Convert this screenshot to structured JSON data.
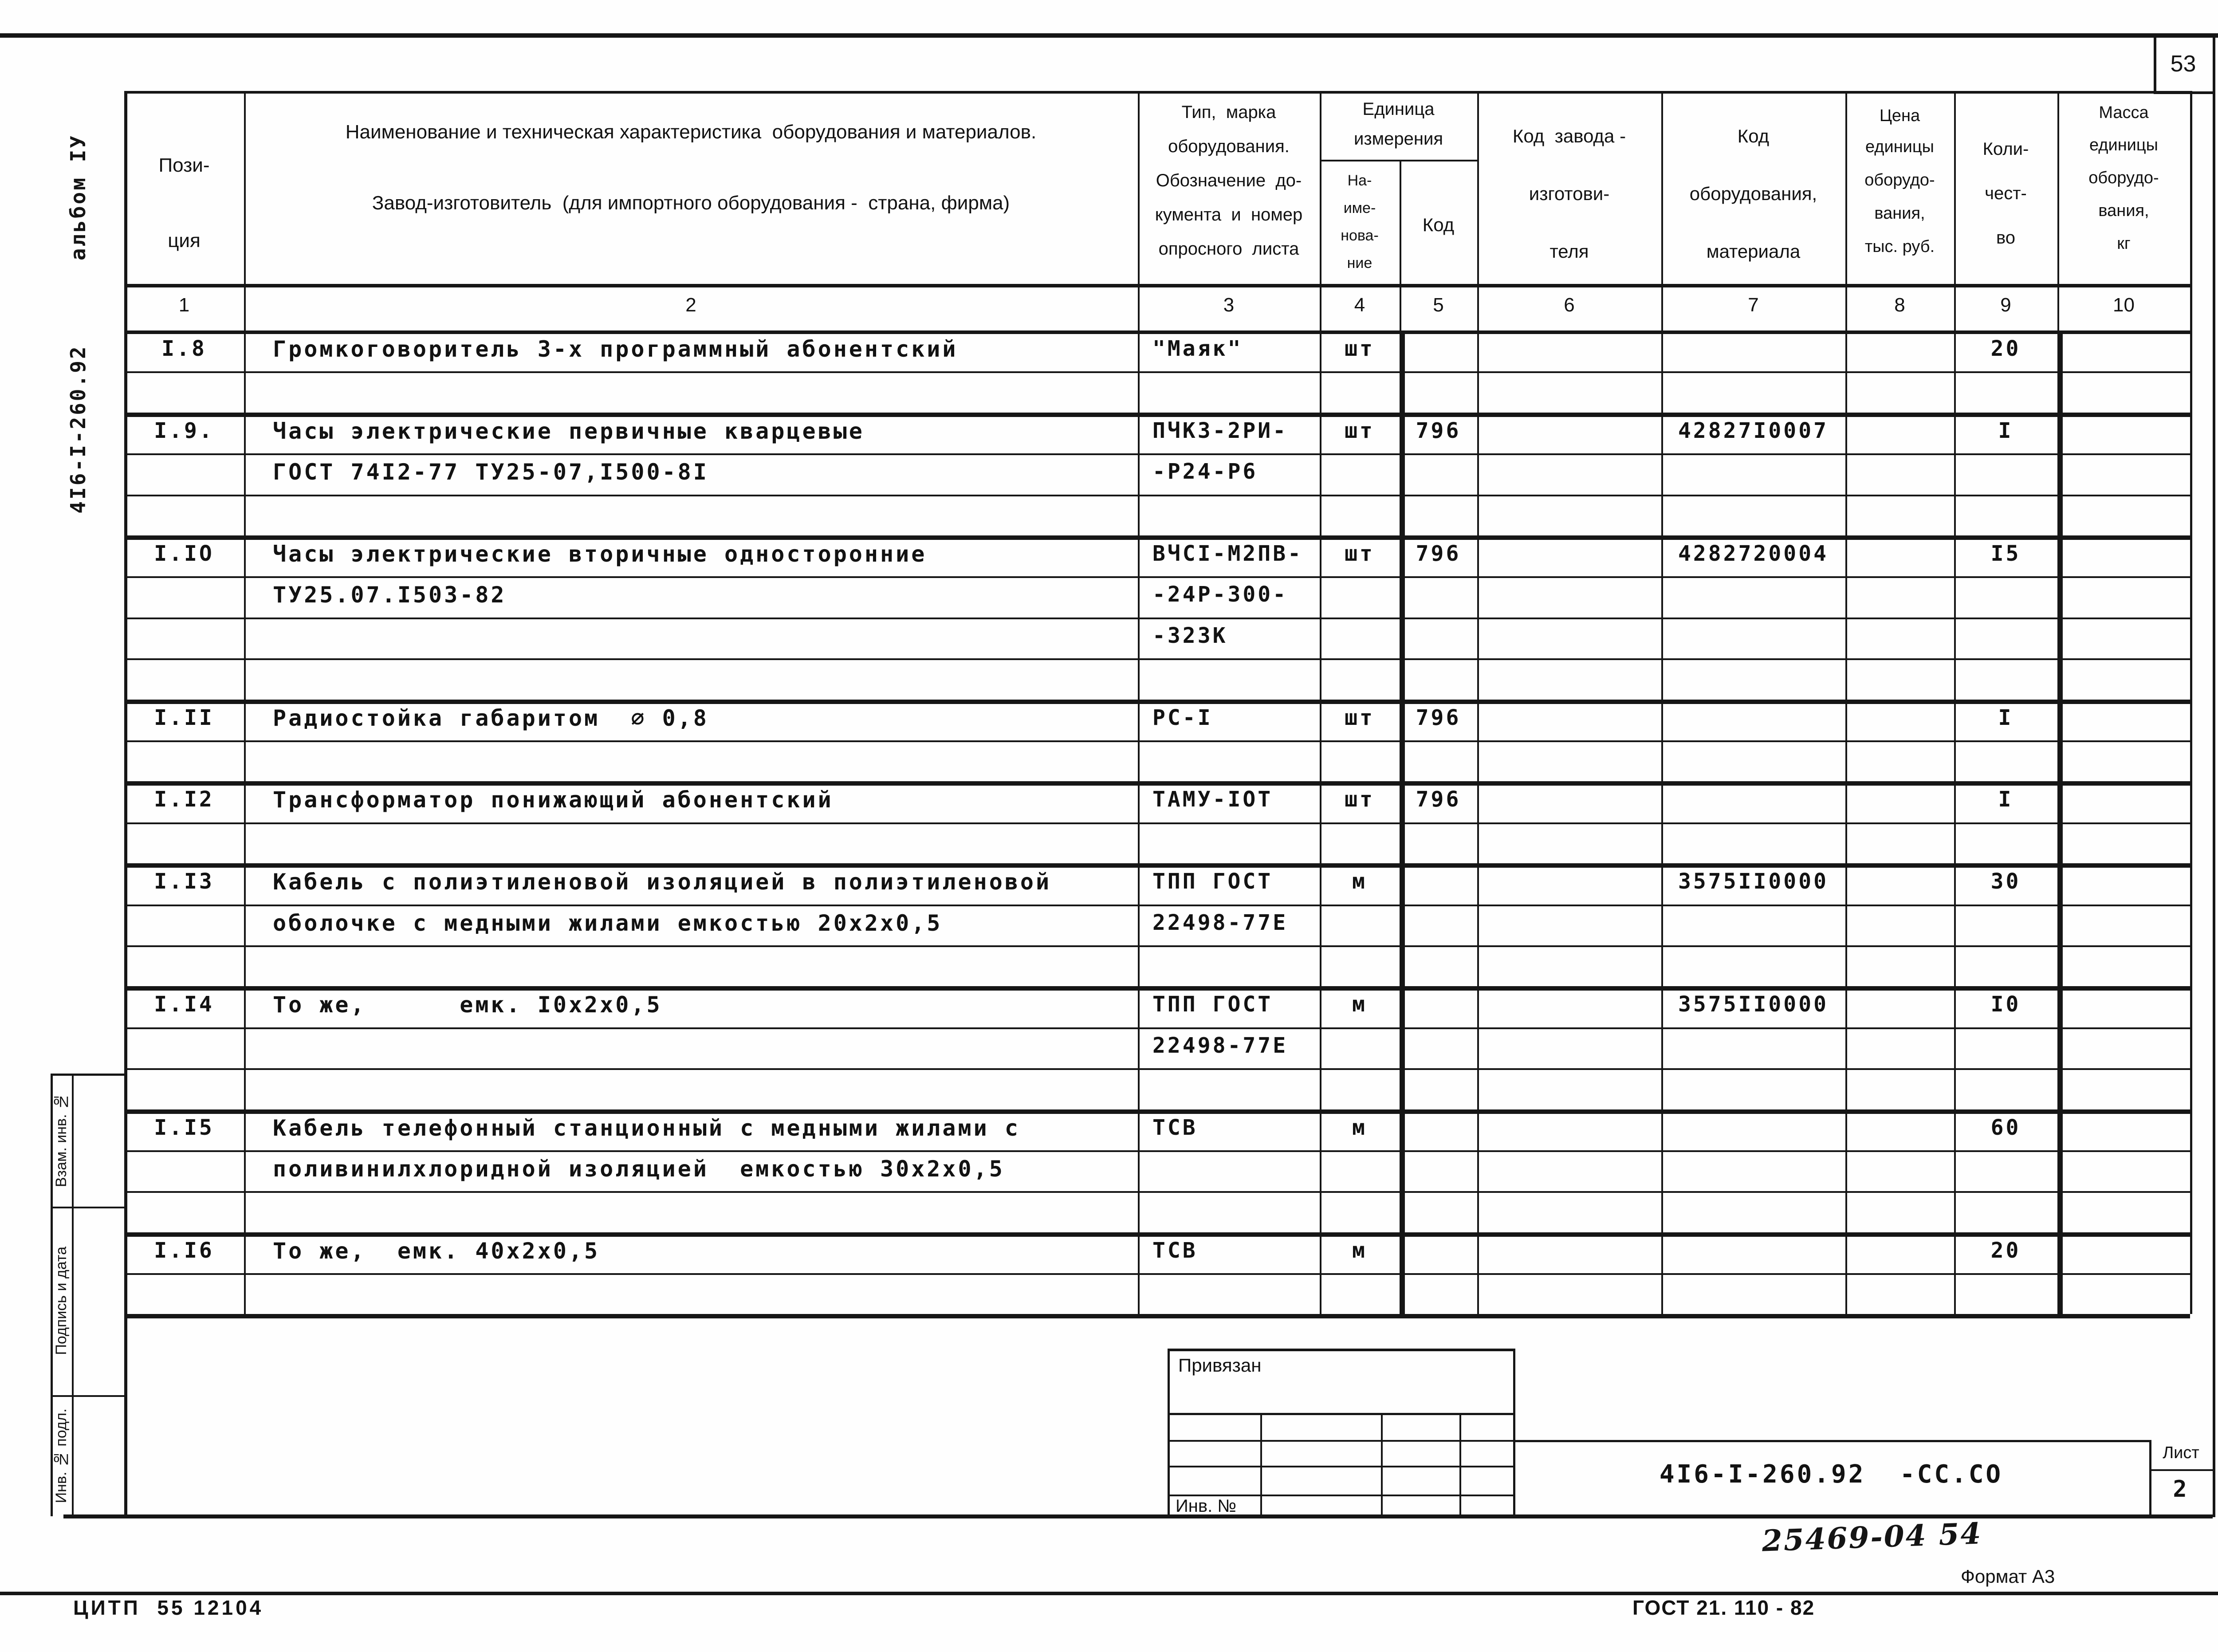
{
  "page": {
    "sheet_no_box": "53",
    "margin_vertical": "4I6-I-260.92      альбом IУ",
    "handwritten_number": "25469-04  54",
    "format_note": "Формат А3",
    "footer_gost": "ГОСТ 21. 110 - 82",
    "footer_citp": "ЦИТП  55 12104"
  },
  "sidebar": {
    "boxes": [
      {
        "label": "Взам. инв. №"
      },
      {
        "label": "Подпись и дата"
      },
      {
        "label": "Инв. № подл."
      }
    ]
  },
  "stamp": {
    "binding_label": "Привязан",
    "inv_label": "Инв. №",
    "designation": "4I6-I-260.92  -СС.СО",
    "sheet_label": "Лист",
    "sheet_number": "2"
  },
  "table": {
    "headers": {
      "col1": [
        "Пози-",
        "ция"
      ],
      "col2": [
        "Наименование и техническая характеристика  оборудования и материалов.",
        "Завод-изготовитель  (для импортного оборудования -  страна, фирма)"
      ],
      "col3": [
        "Тип,  марка",
        "оборудования.",
        "Обозначение  до-",
        "кумента  и  номер",
        "опросного  листа"
      ],
      "unit_group": [
        "Единица",
        "измерения"
      ],
      "col4": [
        "На-",
        "име-",
        "нова-",
        "ние"
      ],
      "col5": [
        "Код"
      ],
      "col6": [
        "Код  завода -",
        "изготови-",
        "теля"
      ],
      "col7": [
        "Код",
        "оборудования,",
        "материала"
      ],
      "col8": [
        "Цена",
        "единицы",
        "оборудо-",
        "вания,",
        "тыс. руб."
      ],
      "col9": [
        "Коли-",
        "чест-",
        "во"
      ],
      "col10": [
        "Масса",
        "единицы",
        "оборудо-",
        "вания,",
        "кг"
      ],
      "numbers": [
        "1",
        "2",
        "3",
        "4",
        "5",
        "6",
        "7",
        "8",
        "9",
        "10"
      ]
    },
    "rows": [
      {
        "pos": "I.8",
        "name": "Громкоговоритель 3-х программный абонентский",
        "type": "\"Маяк\"",
        "unit": "шт",
        "qty": "20"
      },
      {
        "sep": true
      },
      {
        "pos": "I.9.",
        "name": "Часы электрические первичные кварцевые",
        "type": "ПЧКЗ-2РИ-",
        "unit": "шт",
        "unit_code": "796",
        "material_code": "42827I0007",
        "qty": "I"
      },
      {
        "name": "ГОСТ 74I2-77 ТУ25-07,I500-8I",
        "type": "-Р24-Р6"
      },
      {
        "sep": true
      },
      {
        "pos": "I.IO",
        "name": "Часы электрические вторичные односторонние",
        "type": "ВЧСI-М2ПВ-",
        "unit": "шт",
        "unit_code": "796",
        "material_code": "4282720004",
        "qty": "I5"
      },
      {
        "name": "ТУ25.07.I503-82",
        "type": "-24Р-300-"
      },
      {
        "type": "-323К"
      },
      {
        "sep": true
      },
      {
        "pos": "I.II",
        "name": "Радиостойка габаритом  ∅ 0,8",
        "type": "РС-I",
        "unit": "шт",
        "unit_code": "796",
        "qty": "I"
      },
      {
        "sep": true
      },
      {
        "pos": "I.I2",
        "name": "Трансформатор понижающий абонентский",
        "type": "ТАМУ-IOТ",
        "unit": "шт",
        "unit_code": "796",
        "qty": "I"
      },
      {
        "sep": true
      },
      {
        "pos": "I.I3",
        "name": "Кабель с полиэтиленовой изоляцией в полиэтиленовой",
        "type": "ТПП ГОСТ",
        "unit": "м",
        "material_code": "3575II0000",
        "qty": "30"
      },
      {
        "name": "оболочке с медными жилами емкостью 20х2х0,5",
        "type": "22498-77Е"
      },
      {
        "sep": true
      },
      {
        "pos": "I.I4",
        "name": "То же,      емк. I0х2х0,5",
        "type": "ТПП ГОСТ",
        "unit": "м",
        "material_code": "3575II0000",
        "qty": "I0"
      },
      {
        "type": "22498-77Е"
      },
      {
        "sep": true
      },
      {
        "pos": "I.I5",
        "name": "Кабель телефонный станционный с медными жилами с",
        "type": "ТСВ",
        "unit": "м",
        "qty": "60"
      },
      {
        "name": "поливинилхлоридной изоляцией  емкостью 30х2х0,5"
      },
      {
        "sep": true
      },
      {
        "pos": "I.I6",
        "name": "То же,  емк. 40х2х0,5",
        "type": "ТСВ",
        "unit": "м",
        "qty": "20"
      },
      {
        "sep": true
      }
    ]
  }
}
